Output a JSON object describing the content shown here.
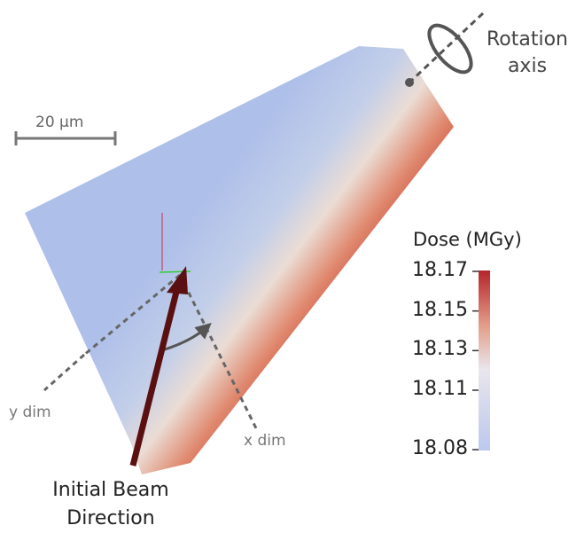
{
  "scale_bar": {
    "label": "20 µm"
  },
  "rotation_axis": {
    "label": "Rotation axis"
  },
  "axes": {
    "y_label": "y dim",
    "x_label": "x dim"
  },
  "beam": {
    "label": "Initial Beam Direction"
  },
  "colorbar": {
    "title": "Dose (MGy)",
    "range": [
      18.08,
      18.17
    ],
    "ticks": [
      18.17,
      18.15,
      18.13,
      18.11,
      18.08
    ]
  }
}
